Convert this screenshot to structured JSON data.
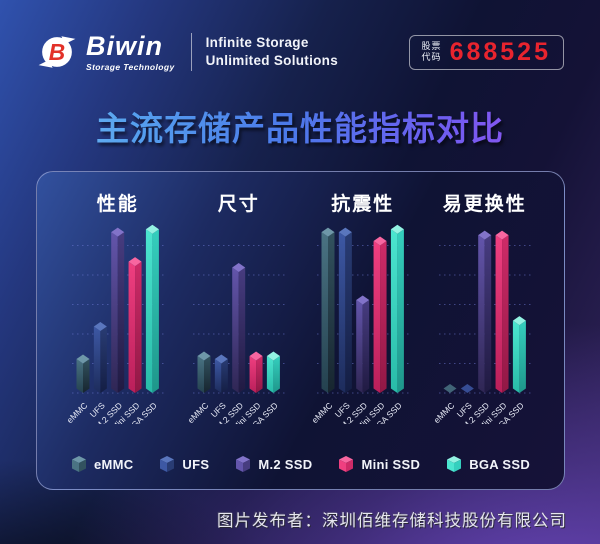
{
  "header": {
    "brand": "Biwin",
    "brand_sub": "Storage Technology",
    "tagline_line1": "Infinite Storage",
    "tagline_line2": "Unlimited Solutions",
    "stock": {
      "label_line1": "股票",
      "label_line2": "代码",
      "code": "688525",
      "code_color": "#e8242e"
    }
  },
  "title": "主流存储产品性能指标对比",
  "footer_credit": "图片发布者：深圳佰维存储科技股份有限公司",
  "chart_data": {
    "type": "bar",
    "title": "主流存储产品性能指标对比",
    "groups": [
      "性能",
      "尺寸",
      "抗震性",
      "易更换性"
    ],
    "categories": [
      "eMMC",
      "UFS",
      "M.2 SSD",
      "Mini SSD",
      "BGA SSD"
    ],
    "series": [
      {
        "name": "eMMC",
        "values": [
          1.0,
          1.1,
          5.3,
          0
        ],
        "color": "#44707f",
        "faces": {
          "top": "#6e97a8",
          "l1": "#4a7383",
          "l2": "#24414f",
          "r1": "#32525f",
          "r2": "#17252f"
        }
      },
      {
        "name": "UFS",
        "values": [
          2.1,
          1.0,
          5.3,
          0
        ],
        "color": "#32499c",
        "faces": {
          "top": "#5a76bd",
          "l1": "#3d58a4",
          "l2": "#1d2c5c",
          "r1": "#293c74",
          "r2": "#141e44"
        }
      },
      {
        "name": "M.2 SSD",
        "values": [
          5.3,
          4.1,
          3.0,
          5.2
        ],
        "color": "#584a9e",
        "faces": {
          "top": "#8273c9",
          "l1": "#6355ab",
          "l2": "#2f2654",
          "r1": "#473c80",
          "r2": "#201a42"
        }
      },
      {
        "name": "Mini SSD",
        "values": [
          4.3,
          1.1,
          5.0,
          5.2
        ],
        "color": "#e82d6e",
        "faces": {
          "top": "#f866a0",
          "l1": "#ef3f80",
          "l2": "#ba1f5a",
          "r1": "#ce2b68",
          "r2": "#911845"
        }
      },
      {
        "name": "BGA SSD",
        "values": [
          5.4,
          1.1,
          5.4,
          2.3
        ],
        "color": "#3cdcc8",
        "faces": {
          "top": "#93f2e2",
          "l1": "#4ce5d0",
          "l2": "#28bba8",
          "r1": "#35cfbe",
          "r2": "#1e968a"
        }
      }
    ],
    "ylim": [
      0,
      5.5
    ],
    "gridlines": 5,
    "grid_style": "dotted",
    "legend_position": "bottom",
    "axis_labels_rotation": -45
  }
}
